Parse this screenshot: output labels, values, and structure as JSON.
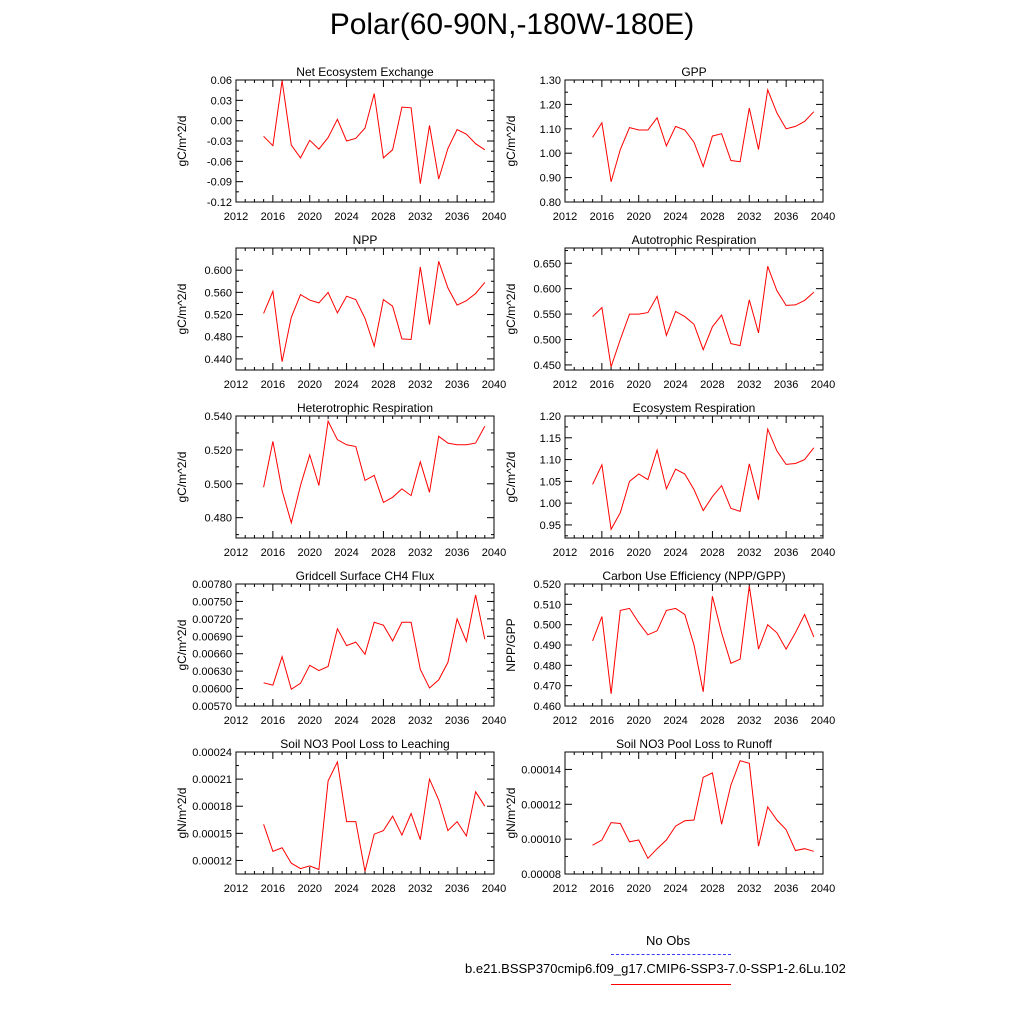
{
  "title": "Polar(60-90N,-180W-180E)",
  "legend": [
    {
      "label": "No Obs",
      "color": "#3a3aff",
      "dash": "dashed"
    },
    {
      "label": "b.e21.BSSP370cmip6.f09_g17.CMIP6-SSP3-7.0-SSP1-2.6Lu.102",
      "color": "#ff0000",
      "dash": "solid"
    }
  ],
  "chart_data": [
    {
      "type": "line",
      "title": "Net Ecosystem Exchange",
      "ylabel": "gC/m^2/d",
      "xlim": [
        2012,
        2040
      ],
      "xticks": [
        2012,
        2016,
        2020,
        2024,
        2028,
        2032,
        2036,
        2040
      ],
      "ylim": [
        -0.12,
        0.06
      ],
      "yticks": [
        "0.06",
        "0.03",
        "0.00",
        "-0.03",
        "-0.06",
        "-0.09",
        "-0.12"
      ],
      "series": [
        {
          "color": "#ff0000",
          "x": [
            2015,
            2016,
            2017,
            2018,
            2019,
            2020,
            2021,
            2022,
            2023,
            2024,
            2025,
            2026,
            2027,
            2028,
            2029,
            2030,
            2031,
            2032,
            2033,
            2034,
            2035,
            2036,
            2037,
            2038,
            2039
          ],
          "values": [
            -0.023,
            -0.037,
            0.059,
            -0.036,
            -0.055,
            -0.029,
            -0.042,
            -0.025,
            0.002,
            -0.03,
            -0.026,
            -0.011,
            0.04,
            -0.055,
            -0.043,
            0.02,
            0.019,
            -0.093,
            -0.007,
            -0.086,
            -0.041,
            -0.013,
            -0.02,
            -0.034,
            -0.043
          ]
        }
      ]
    },
    {
      "type": "line",
      "title": "GPP",
      "ylabel": "gC/m^2/d",
      "xlim": [
        2012,
        2040
      ],
      "xticks": [
        2012,
        2016,
        2020,
        2024,
        2028,
        2032,
        2036,
        2040
      ],
      "ylim": [
        0.8,
        1.3
      ],
      "yticks": [
        "1.30",
        "1.20",
        "1.10",
        "1.00",
        "0.90",
        "0.80"
      ],
      "series": [
        {
          "color": "#ff0000",
          "x": [
            2015,
            2016,
            2017,
            2018,
            2019,
            2020,
            2021,
            2022,
            2023,
            2024,
            2025,
            2026,
            2027,
            2028,
            2029,
            2030,
            2031,
            2032,
            2033,
            2034,
            2035,
            2036,
            2037,
            2038,
            2039
          ],
          "values": [
            1.065,
            1.125,
            0.883,
            1.015,
            1.105,
            1.095,
            1.095,
            1.145,
            1.03,
            1.11,
            1.095,
            1.045,
            0.945,
            1.07,
            1.08,
            0.97,
            0.965,
            1.185,
            1.015,
            1.26,
            1.165,
            1.1,
            1.11,
            1.13,
            1.17
          ]
        }
      ]
    },
    {
      "type": "line",
      "title": "NPP",
      "ylabel": "gC/m^2/d",
      "xlim": [
        2012,
        2040
      ],
      "xticks": [
        2012,
        2016,
        2020,
        2024,
        2028,
        2032,
        2036,
        2040
      ],
      "ylim": [
        0.42,
        0.64
      ],
      "yticks": [
        "0.600",
        "0.560",
        "0.520",
        "0.480",
        "0.440"
      ],
      "series": [
        {
          "color": "#ff0000",
          "x": [
            2015,
            2016,
            2017,
            2018,
            2019,
            2020,
            2021,
            2022,
            2023,
            2024,
            2025,
            2026,
            2027,
            2028,
            2029,
            2030,
            2031,
            2032,
            2033,
            2034,
            2035,
            2036,
            2037,
            2038,
            2039
          ],
          "values": [
            0.522,
            0.562,
            0.435,
            0.515,
            0.556,
            0.546,
            0.541,
            0.56,
            0.523,
            0.553,
            0.547,
            0.513,
            0.463,
            0.547,
            0.535,
            0.476,
            0.475,
            0.606,
            0.502,
            0.616,
            0.568,
            0.537,
            0.545,
            0.558,
            0.578
          ]
        }
      ]
    },
    {
      "type": "line",
      "title": "Autotrophic Respiration",
      "ylabel": "gC/m^2/d",
      "xlim": [
        2012,
        2040
      ],
      "xticks": [
        2012,
        2016,
        2020,
        2024,
        2028,
        2032,
        2036,
        2040
      ],
      "ylim": [
        0.44,
        0.68
      ],
      "yticks": [
        "0.650",
        "0.600",
        "0.550",
        "0.500",
        "0.450"
      ],
      "series": [
        {
          "color": "#ff0000",
          "x": [
            2015,
            2016,
            2017,
            2018,
            2019,
            2020,
            2021,
            2022,
            2023,
            2024,
            2025,
            2026,
            2027,
            2028,
            2029,
            2030,
            2031,
            2032,
            2033,
            2034,
            2035,
            2036,
            2037,
            2038,
            2039
          ],
          "values": [
            0.545,
            0.563,
            0.446,
            0.5,
            0.55,
            0.55,
            0.553,
            0.585,
            0.508,
            0.555,
            0.545,
            0.53,
            0.48,
            0.525,
            0.548,
            0.492,
            0.488,
            0.578,
            0.513,
            0.644,
            0.596,
            0.567,
            0.568,
            0.577,
            0.593
          ]
        }
      ]
    },
    {
      "type": "line",
      "title": "Heterotrophic Respiration",
      "ylabel": "gC/m^2/d",
      "xlim": [
        2012,
        2040
      ],
      "xticks": [
        2012,
        2016,
        2020,
        2024,
        2028,
        2032,
        2036,
        2040
      ],
      "ylim": [
        0.468,
        0.54
      ],
      "yticks": [
        "0.540",
        "0.520",
        "0.500",
        "0.480"
      ],
      "series": [
        {
          "color": "#ff0000",
          "x": [
            2015,
            2016,
            2017,
            2018,
            2019,
            2020,
            2021,
            2022,
            2023,
            2024,
            2025,
            2026,
            2027,
            2028,
            2029,
            2030,
            2031,
            2032,
            2033,
            2034,
            2035,
            2036,
            2037,
            2038,
            2039
          ],
          "values": [
            0.498,
            0.525,
            0.496,
            0.477,
            0.499,
            0.517,
            0.499,
            0.537,
            0.526,
            0.523,
            0.522,
            0.502,
            0.505,
            0.489,
            0.492,
            0.497,
            0.493,
            0.513,
            0.495,
            0.528,
            0.524,
            0.523,
            0.523,
            0.524,
            0.534
          ]
        }
      ]
    },
    {
      "type": "line",
      "title": "Ecosystem Respiration",
      "ylabel": "gC/m^2/d",
      "xlim": [
        2012,
        2040
      ],
      "xticks": [
        2012,
        2016,
        2020,
        2024,
        2028,
        2032,
        2036,
        2040
      ],
      "ylim": [
        0.92,
        1.2
      ],
      "yticks": [
        "1.20",
        "1.15",
        "1.10",
        "1.05",
        "1.00",
        "0.95"
      ],
      "series": [
        {
          "color": "#ff0000",
          "x": [
            2015,
            2016,
            2017,
            2018,
            2019,
            2020,
            2021,
            2022,
            2023,
            2024,
            2025,
            2026,
            2027,
            2028,
            2029,
            2030,
            2031,
            2032,
            2033,
            2034,
            2035,
            2036,
            2037,
            2038,
            2039
          ],
          "values": [
            1.043,
            1.088,
            0.94,
            0.978,
            1.05,
            1.067,
            1.054,
            1.122,
            1.033,
            1.078,
            1.067,
            1.031,
            0.983,
            1.015,
            1.04,
            0.988,
            0.981,
            1.09,
            1.008,
            1.17,
            1.12,
            1.089,
            1.091,
            1.1,
            1.127
          ]
        }
      ]
    },
    {
      "type": "line",
      "title": "Gridcell Surface CH4 Flux",
      "ylabel": "gC/m^2/d",
      "xlim": [
        2012,
        2040
      ],
      "xticks": [
        2012,
        2016,
        2020,
        2024,
        2028,
        2032,
        2036,
        2040
      ],
      "ylim": [
        0.0057,
        0.0078
      ],
      "yticks": [
        "0.00780",
        "0.00750",
        "0.00720",
        "0.00690",
        "0.00660",
        "0.00630",
        "0.00600",
        "0.00570"
      ],
      "series": [
        {
          "color": "#ff0000",
          "x": [
            2015,
            2016,
            2017,
            2018,
            2019,
            2020,
            2021,
            2022,
            2023,
            2024,
            2025,
            2026,
            2027,
            2028,
            2029,
            2030,
            2031,
            2032,
            2033,
            2034,
            2035,
            2036,
            2037,
            2038,
            2039
          ],
          "values": [
            0.0061,
            0.00606,
            0.00655,
            0.00599,
            0.00609,
            0.0064,
            0.00631,
            0.00638,
            0.00703,
            0.00674,
            0.0068,
            0.00659,
            0.00714,
            0.00709,
            0.00682,
            0.00714,
            0.00714,
            0.00633,
            0.00601,
            0.00615,
            0.00645,
            0.0072,
            0.00681,
            0.00761,
            0.00685
          ]
        }
      ]
    },
    {
      "type": "line",
      "title": "Carbon Use Efficiency (NPP/GPP)",
      "ylabel": "NPP/GPP",
      "xlim": [
        2012,
        2040
      ],
      "xticks": [
        2012,
        2016,
        2020,
        2024,
        2028,
        2032,
        2036,
        2040
      ],
      "ylim": [
        0.46,
        0.52
      ],
      "yticks": [
        "0.520",
        "0.510",
        "0.500",
        "0.490",
        "0.480",
        "0.470",
        "0.460"
      ],
      "series": [
        {
          "color": "#ff0000",
          "x": [
            2015,
            2016,
            2017,
            2018,
            2019,
            2020,
            2021,
            2022,
            2023,
            2024,
            2025,
            2026,
            2027,
            2028,
            2029,
            2030,
            2031,
            2032,
            2033,
            2034,
            2035,
            2036,
            2037,
            2038,
            2039
          ],
          "values": [
            0.492,
            0.504,
            0.466,
            0.507,
            0.508,
            0.501,
            0.495,
            0.497,
            0.507,
            0.508,
            0.505,
            0.49,
            0.467,
            0.514,
            0.496,
            0.481,
            0.483,
            0.519,
            0.488,
            0.5,
            0.496,
            0.488,
            0.496,
            0.505,
            0.494
          ]
        }
      ]
    },
    {
      "type": "line",
      "title": "Soil NO3 Pool Loss to Leaching",
      "ylabel": "gN/m^2/d",
      "xlim": [
        2012,
        2040
      ],
      "xticks": [
        2012,
        2016,
        2020,
        2024,
        2028,
        2032,
        2036,
        2040
      ],
      "ylim": [
        0.000105,
        0.00024
      ],
      "yticks": [
        "0.00024",
        "0.00021",
        "0.00018",
        "0.00015",
        "0.00012"
      ],
      "series": [
        {
          "color": "#ff0000",
          "x": [
            2015,
            2016,
            2017,
            2018,
            2019,
            2020,
            2021,
            2022,
            2023,
            2024,
            2025,
            2026,
            2027,
            2028,
            2029,
            2030,
            2031,
            2032,
            2033,
            2034,
            2035,
            2036,
            2037,
            2038,
            2039
          ],
          "values": [
            0.00016,
            0.00013,
            0.000134,
            0.000117,
            0.000111,
            0.000114,
            0.00011,
            0.000208,
            0.000229,
            0.000163,
            0.000163,
            0.000108,
            0.000149,
            0.000153,
            0.000169,
            0.000148,
            0.000172,
            0.000143,
            0.00021,
            0.000187,
            0.000153,
            0.000163,
            0.000147,
            0.000196,
            0.00018
          ]
        }
      ]
    },
    {
      "type": "line",
      "title": "Soil NO3 Pool Loss to Runoff",
      "ylabel": "gN/m^2/d",
      "xlim": [
        2012,
        2040
      ],
      "xticks": [
        2012,
        2016,
        2020,
        2024,
        2028,
        2032,
        2036,
        2040
      ],
      "ylim": [
        8e-05,
        0.00015
      ],
      "yticks": [
        "0.00014",
        "0.00012",
        "0.00010",
        "0.00008"
      ],
      "series": [
        {
          "color": "#ff0000",
          "x": [
            2015,
            2016,
            2017,
            2018,
            2019,
            2020,
            2021,
            2022,
            2023,
            2024,
            2025,
            2026,
            2027,
            2028,
            2029,
            2030,
            2031,
            2032,
            2033,
            2034,
            2035,
            2036,
            2037,
            2038,
            2039
          ],
          "values": [
            9.65e-05,
            9.95e-05,
            0.0001095,
            0.000109,
            9.85e-05,
            9.95e-05,
            8.9e-05,
            9.45e-05,
            9.95e-05,
            0.0001075,
            0.0001105,
            0.000111,
            0.0001355,
            0.000138,
            0.0001085,
            0.000131,
            0.000145,
            0.0001435,
            9.6e-05,
            0.0001185,
            0.000111,
            0.0001055,
            9.35e-05,
            9.45e-05,
            9.3e-05
          ]
        }
      ]
    }
  ]
}
